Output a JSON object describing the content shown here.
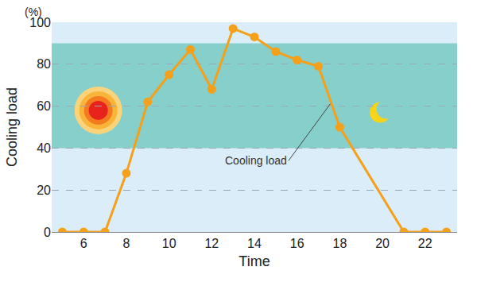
{
  "chart_data": {
    "type": "line",
    "x_label": "Time",
    "y_label": "Cooling load",
    "y_unit": "(%)",
    "annotation": "Cooling load",
    "x": [
      5,
      6,
      7,
      8,
      9,
      10,
      11,
      12,
      13,
      14,
      15,
      16,
      17,
      18,
      21,
      22,
      23
    ],
    "values": [
      0,
      0,
      0,
      28,
      62,
      75,
      87,
      68,
      97,
      93,
      86,
      82,
      79,
      50,
      0,
      0,
      0
    ],
    "color": "#f5a01a",
    "marker": "circle",
    "line_style": "solid",
    "xlim": [
      4.5,
      23.5
    ],
    "xticks": [
      6,
      8,
      10,
      12,
      14,
      16,
      18,
      20,
      22
    ],
    "ylim": [
      0,
      100
    ],
    "yticks": [
      0,
      20,
      40,
      60,
      80,
      100
    ],
    "grid": true,
    "band": [
      40,
      90
    ]
  }
}
